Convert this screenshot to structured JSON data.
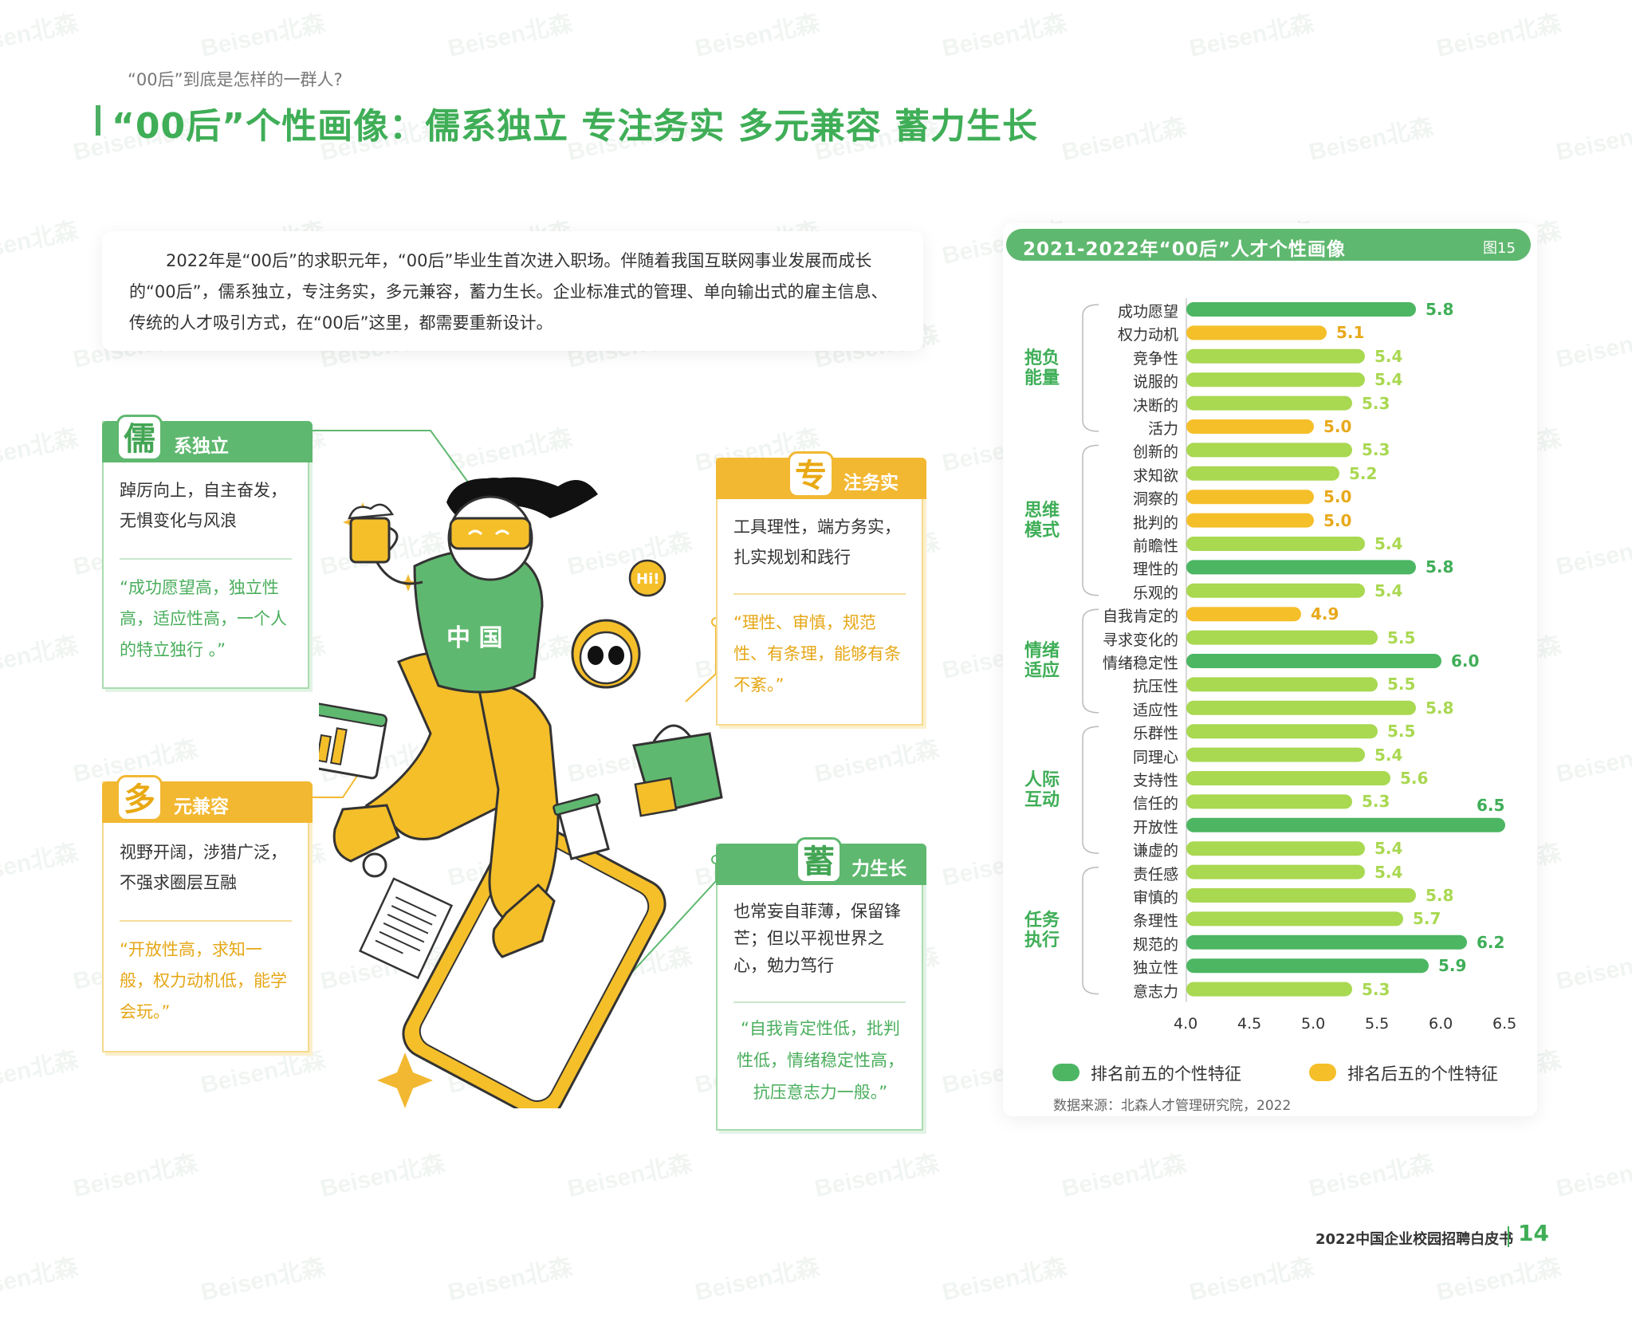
{
  "header": {
    "subtitle": "“00后”到底是怎样的一群人?",
    "title": "“00后”个性画像：儒系独立  专注务实  多元兼容  蓄力生长"
  },
  "intro": {
    "text": "2022年是“00后”的求职元年，“00后”毕业生首次进入职场。伴随着我国互联网事业发展而成长的“00后”，儒系独立，专注务实，多元兼容，蓄力生长。企业标准式的管理、单向输出式的雇主信息、传统的人才吸引方式，在“00后”这里，都需要重新设计。"
  },
  "cards": {
    "ru": {
      "badge": "儒",
      "label": "系独立",
      "body": "踔厉向上，自主奋发，无惧变化与风浪",
      "quote": "“成功愿望高，独立性高，适应性高，一个人的特立独行 。”"
    },
    "duo": {
      "badge": "多",
      "label": "元兼容",
      "body": "视野开阔，涉猎广泛，不强求圈层互融",
      "quote": "“开放性高，求知一般，权力动机低，能学会玩。”"
    },
    "zhuan": {
      "badge": "专",
      "label": "注务实",
      "body": "工具理性，端方务实，扎实规划和践行",
      "quote": "“理性、审慎，规范性、有条理，能够有条不紊。”"
    },
    "xu": {
      "badge": "蓄",
      "label": "力生长",
      "body": "也常妄自菲薄，保留锋芒；但以平视世界之心，勉力笃行",
      "quote": "“自我肯定性低，批判性低，情绪稳定性高，抗压意志力一般。”"
    }
  },
  "illustration": {
    "shirt_text": "中 国",
    "bubble_text": "Hi!"
  },
  "chart_panel": {
    "title": "2021-2022年“00后”人才个性画像",
    "figure_label": "图15",
    "source": "数据来源：北森人才管理研究院，2022"
  },
  "chart_data": {
    "type": "bar",
    "orientation": "horizontal",
    "xlim": [
      4.0,
      6.5
    ],
    "xticks": [
      "4.0",
      "4.5",
      "5.0",
      "5.5",
      "6.0",
      "6.5"
    ],
    "groups": [
      {
        "name": "抱负\n能量",
        "start": 0,
        "end": 5
      },
      {
        "name": "思维\n模式",
        "start": 6,
        "end": 12
      },
      {
        "name": "情绪\n适应",
        "start": 13,
        "end": 17
      },
      {
        "name": "人际\n互动",
        "start": 18,
        "end": 23
      },
      {
        "name": "任务\n执行",
        "start": 24,
        "end": 29
      }
    ],
    "categories": [
      "成功愿望",
      "权力动机",
      "竞争性",
      "说服的",
      "决断的",
      "活力",
      "创新的",
      "求知欲",
      "洞察的",
      "批判的",
      "前瞻性",
      "理性的",
      "乐观的",
      "自我肯定的",
      "寻求变化的",
      "情绪稳定性",
      "抗压性",
      "适应性",
      "乐群性",
      "同理心",
      "支持性",
      "信任的",
      "开放性",
      "谦虚的",
      "责任感",
      "审慎的",
      "条理性",
      "规范的",
      "独立性",
      "意志力"
    ],
    "values": [
      5.8,
      5.1,
      5.4,
      5.4,
      5.3,
      5.0,
      5.3,
      5.2,
      5.0,
      5.0,
      5.4,
      5.8,
      5.4,
      4.9,
      5.5,
      6.0,
      5.5,
      5.8,
      5.5,
      5.4,
      5.6,
      5.3,
      6.5,
      5.4,
      5.4,
      5.8,
      5.7,
      6.2,
      5.9,
      5.3
    ],
    "value_labels": [
      "5.8",
      "5.1",
      "5.4",
      "5.4",
      "5.3",
      "5.0",
      "5.3",
      "5.2",
      "5.0",
      "5.0",
      "5.4",
      "5.8",
      "5.4",
      "4.9",
      "5.5",
      "6.0",
      "5.5",
      "5.8",
      "5.5",
      "5.4",
      "5.6",
      "5.3",
      "6.5",
      "5.4",
      "5.4",
      "5.8",
      "5.7",
      "6.2",
      "5.9",
      "5.3"
    ],
    "rank": [
      "top",
      "bottom",
      "mid",
      "mid",
      "mid",
      "bottom",
      "mid",
      "mid",
      "bottom",
      "bottom",
      "mid",
      "top",
      "mid",
      "bottom",
      "mid",
      "top",
      "mid",
      "mid",
      "mid",
      "mid",
      "mid",
      "mid",
      "top",
      "mid",
      "mid",
      "mid",
      "mid",
      "top",
      "top",
      "mid"
    ],
    "legend": [
      {
        "key": "top",
        "label": "排名前五的个性特征"
      },
      {
        "key": "bottom",
        "label": "排名后五的个性特征"
      }
    ],
    "legend_position": "bottom",
    "colors": {
      "top": "#4cb663",
      "bottom": "#f5bf2a",
      "mid": "#a9d851",
      "value_top": "#3fae57",
      "value_bottom": "#e8a91a",
      "value_mid": "#a9d851"
    }
  },
  "footer": {
    "report": "2022中国企业校园招聘白皮书",
    "page": "14"
  },
  "watermark": "Beisen北森"
}
